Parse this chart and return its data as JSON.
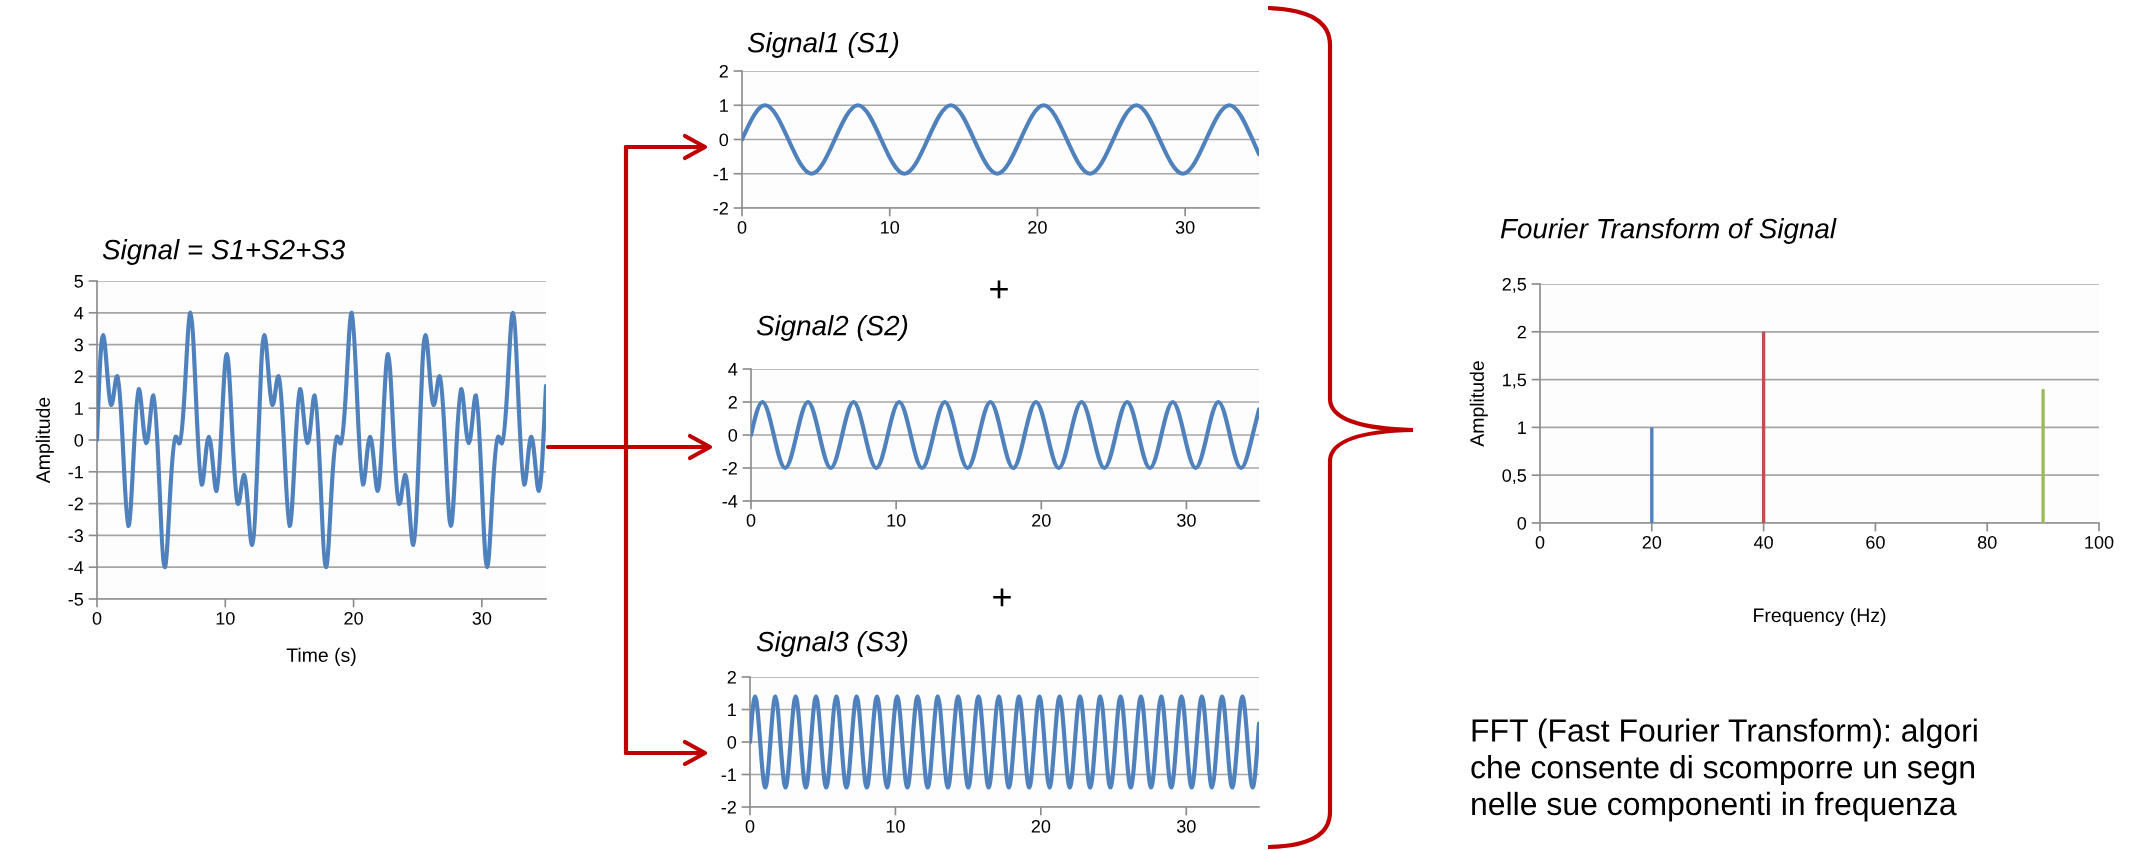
{
  "chart_data": [
    {
      "type": "line",
      "title": "Signal = S1+S2+S3",
      "xlabel": "Time (s)",
      "ylabel": "Amplitude",
      "xlim": [
        0,
        35
      ],
      "ylim": [
        -5,
        5
      ],
      "xticks": [
        0,
        10,
        20,
        30
      ],
      "yticks": [
        -5,
        -4,
        -3,
        -2,
        -1,
        0,
        1,
        2,
        3,
        4,
        5
      ],
      "grid": "y",
      "x": [
        0.0,
        0.24,
        0.47,
        0.8,
        1.12,
        1.36,
        1.59,
        2.02,
        2.44,
        2.85,
        3.25,
        3.55,
        3.84,
        4.12,
        4.4,
        4.84,
        5.28,
        5.7,
        6.13,
        6.28,
        6.44,
        6.86,
        7.29,
        7.73,
        8.16,
        8.44,
        8.72,
        9.02,
        9.32,
        9.72,
        10.12,
        10.55,
        10.97,
        11.21,
        11.44,
        11.77,
        12.09,
        12.57,
        12.81,
        13.04,
        13.37,
        13.69,
        13.93,
        14.16,
        14.59,
        15.01,
        15.42,
        15.82,
        16.12,
        16.41,
        16.69,
        16.97,
        17.41,
        17.85,
        18.27,
        18.7,
        18.85,
        19.01,
        19.43,
        19.86,
        20.29,
        20.73,
        21.01,
        21.29,
        21.59,
        21.88,
        22.29,
        22.69,
        23.11,
        23.54,
        23.78,
        24.01,
        24.34,
        24.66,
        25.13,
        25.37,
        25.6,
        25.93,
        26.25,
        26.49,
        26.72,
        27.15,
        27.58,
        27.98,
        28.38,
        28.68,
        28.98,
        29.26,
        29.54,
        29.97,
        30.41,
        30.83,
        31.26,
        31.42,
        31.57,
        32.0,
        32.42,
        32.86,
        33.3,
        33.58,
        33.86,
        34.15,
        34.45,
        34.73,
        35.0
      ],
      "series": [
        {
          "color": "#4f81bd",
          "values": [
            0.0,
            2.4,
            3.3,
            2.1,
            1.1,
            1.6,
            2.0,
            -0.2,
            -2.7,
            -0.5,
            1.6,
            0.7,
            -0.1,
            0.6,
            1.4,
            -1.2,
            -4.0,
            -1.7,
            0.1,
            0.0,
            -0.1,
            1.7,
            4.0,
            1.2,
            -1.4,
            -0.6,
            0.1,
            -0.7,
            -1.6,
            0.5,
            2.7,
            0.2,
            -2.0,
            -1.6,
            -1.1,
            -2.1,
            -3.3,
            0.0,
            2.4,
            3.3,
            2.1,
            1.1,
            1.6,
            2.0,
            -0.2,
            -2.7,
            -0.5,
            1.6,
            0.7,
            -0.1,
            0.6,
            1.4,
            -1.2,
            -4.0,
            -1.7,
            0.1,
            0.0,
            -0.1,
            1.7,
            4.0,
            1.2,
            -1.4,
            -0.6,
            0.1,
            -0.7,
            -1.6,
            0.5,
            2.7,
            0.2,
            -2.0,
            -1.6,
            -1.1,
            -2.1,
            -3.3,
            0.0,
            2.4,
            3.3,
            2.1,
            1.1,
            1.6,
            2.0,
            -0.2,
            -2.7,
            -0.5,
            1.6,
            0.7,
            -0.1,
            0.6,
            1.4,
            -1.2,
            -4.0,
            -1.7,
            0.1,
            0.0,
            -0.1,
            1.7,
            4.0,
            1.2,
            -1.4,
            -0.6,
            0.1,
            -0.7,
            -1.6,
            -0.5,
            1.7
          ]
        }
      ]
    },
    {
      "type": "line",
      "title": "Signal1 (S1)",
      "xlim": [
        0,
        35
      ],
      "ylim": [
        -2,
        2
      ],
      "xticks": [
        0,
        10,
        20,
        30
      ],
      "yticks": [
        -2,
        -1,
        0,
        1,
        2
      ],
      "grid": "y",
      "x": [
        0.0,
        1.57,
        3.14,
        4.71,
        6.28,
        7.85,
        9.42,
        11.0,
        12.57,
        14.14,
        15.71,
        17.28,
        18.85,
        20.42,
        21.99,
        23.56,
        25.13,
        26.7,
        28.27,
        29.85,
        31.42,
        32.99,
        34.56,
        35.0
      ],
      "series": [
        {
          "color": "#4f81bd",
          "values": [
            0,
            1,
            0,
            -1,
            0,
            1,
            0,
            -1,
            0,
            1,
            0,
            -1,
            0,
            1,
            0,
            -1,
            0,
            1,
            0,
            -1,
            0,
            1,
            0,
            -0.43
          ]
        }
      ]
    },
    {
      "type": "line",
      "title": "Signal2 (S2)",
      "xlim": [
        0,
        35
      ],
      "ylim": [
        -4,
        4
      ],
      "xticks": [
        0,
        10,
        20,
        30
      ],
      "yticks": [
        -4,
        -2,
        0,
        2,
        4
      ],
      "grid": "y",
      "x": [
        0.0,
        0.79,
        1.57,
        2.36,
        3.14,
        3.93,
        4.71,
        5.5,
        6.28,
        7.07,
        7.85,
        8.64,
        9.42,
        10.21,
        11.0,
        11.78,
        12.57,
        13.35,
        14.14,
        14.92,
        15.71,
        16.49,
        17.28,
        18.06,
        18.85,
        19.63,
        20.42,
        21.21,
        21.99,
        22.78,
        23.56,
        24.35,
        25.13,
        25.92,
        26.7,
        27.49,
        28.27,
        29.06,
        29.85,
        30.63,
        31.42,
        32.2,
        32.99,
        33.77,
        34.56,
        35.0
      ],
      "series": [
        {
          "color": "#4f81bd",
          "values": [
            0,
            2,
            0,
            -2,
            0,
            2,
            0,
            -2,
            0,
            2,
            0,
            -2,
            0,
            2,
            0,
            -2,
            0,
            2,
            0,
            -2,
            0,
            2,
            0,
            -2,
            0,
            2,
            0,
            -2,
            0,
            2,
            0,
            -2,
            0,
            2,
            0,
            -2,
            0,
            2,
            0,
            -2,
            0,
            2,
            0,
            -2,
            0,
            1.55
          ]
        }
      ]
    },
    {
      "type": "line",
      "title": "Signal3 (S3)",
      "xlim": [
        0,
        35
      ],
      "ylim": [
        -2,
        2
      ],
      "xticks": [
        0,
        10,
        20,
        30
      ],
      "yticks": [
        -2,
        -1,
        0,
        1,
        2
      ],
      "grid": "y",
      "x": [
        0.0,
        0.35,
        0.7,
        1.05,
        1.4,
        1.75,
        2.09,
        2.44,
        2.79,
        3.14,
        3.49,
        3.84,
        4.19,
        4.54,
        4.89,
        5.24,
        5.59,
        5.93,
        6.28,
        6.63,
        6.98,
        7.33,
        7.68,
        8.03,
        8.38,
        8.73,
        9.08,
        9.42,
        9.77,
        10.12,
        10.47,
        10.82,
        11.17,
        11.52,
        11.87,
        12.22,
        12.57,
        12.92,
        13.26,
        13.61,
        13.96,
        14.31,
        14.66,
        15.01,
        15.36,
        15.71,
        16.06,
        16.41,
        16.76,
        17.1,
        17.45,
        17.8,
        18.15,
        18.5,
        18.85,
        19.2,
        19.55,
        19.9,
        20.25,
        20.59,
        20.94,
        21.29,
        21.64,
        21.99,
        22.34,
        22.69,
        23.04,
        23.39,
        23.74,
        24.09,
        24.43,
        24.78,
        25.13,
        25.48,
        25.83,
        26.18,
        26.53,
        26.88,
        27.23,
        27.58,
        27.93,
        28.27,
        28.62,
        28.97,
        29.32,
        29.67,
        30.02,
        30.37,
        30.72,
        31.07,
        31.42,
        31.77,
        32.11,
        32.46,
        32.81,
        33.16,
        33.51,
        33.86,
        34.21,
        34.56,
        34.91,
        35.0
      ],
      "series": [
        {
          "color": "#4f81bd",
          "values": [
            0,
            1.4,
            0,
            -1.4,
            0,
            1.4,
            0,
            -1.4,
            0,
            1.4,
            0,
            -1.4,
            0,
            1.4,
            0,
            -1.4,
            0,
            1.4,
            0,
            -1.4,
            0,
            1.4,
            0,
            -1.4,
            0,
            1.4,
            0,
            -1.4,
            0,
            1.4,
            0,
            -1.4,
            0,
            1.4,
            0,
            -1.4,
            0,
            1.4,
            0,
            -1.4,
            0,
            1.4,
            0,
            -1.4,
            0,
            1.4,
            0,
            -1.4,
            0,
            1.4,
            0,
            -1.4,
            0,
            1.4,
            0,
            -1.4,
            0,
            1.4,
            0,
            -1.4,
            0,
            1.4,
            0,
            -1.4,
            0,
            1.4,
            0,
            -1.4,
            0,
            1.4,
            0,
            -1.4,
            0,
            1.4,
            0,
            -1.4,
            0,
            1.4,
            0,
            -1.4,
            0,
            1.4,
            0,
            -1.4,
            0,
            1.4,
            0,
            -1.4,
            0,
            1.4,
            0,
            -1.4,
            0,
            1.4,
            0,
            -1.4,
            0,
            1.4,
            0,
            -1.4,
            0,
            0.57
          ]
        }
      ]
    },
    {
      "type": "bar",
      "title": "Fourier Transform of Signal",
      "xlabel": "Frequency (Hz)",
      "ylabel": "Amplitude",
      "xlim": [
        0,
        100
      ],
      "ylim": [
        0,
        2.5
      ],
      "xticks": [
        0,
        20,
        40,
        60,
        80,
        100
      ],
      "yticks": [
        0,
        {
          "value": 0.5,
          "label": "0,5"
        },
        1,
        {
          "value": 1.5,
          "label": "1,5"
        },
        2,
        {
          "value": 2.5,
          "label": "2,5"
        }
      ],
      "grid": "y",
      "x": [
        20,
        40,
        90
      ],
      "values": [
        1,
        2,
        1.4
      ],
      "colors": [
        "#4f81bd",
        "#c0504d",
        "#9bbb59"
      ]
    },
    {
      "type": "other",
      "annotations": [
        "+",
        "+",
        "FFT (Fast Fourier Transform): algori\nche consente di scomporre un segn\nnelle sue componenti in frequenza"
      ]
    }
  ]
}
